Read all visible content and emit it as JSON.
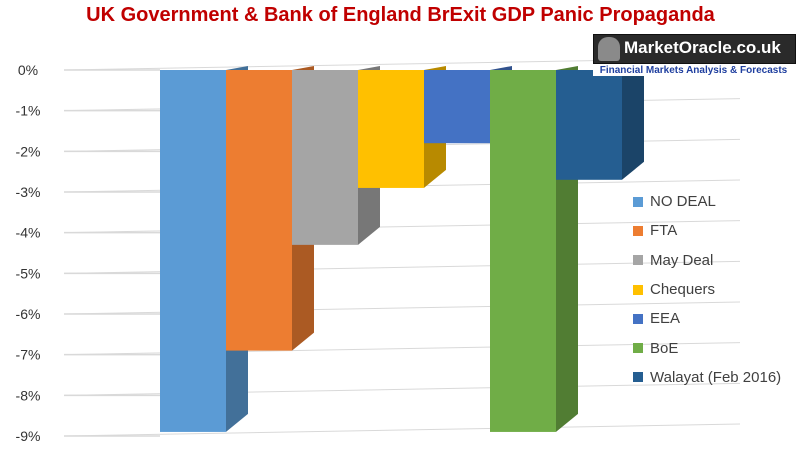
{
  "chart_data": {
    "type": "bar",
    "style": "3d-columns",
    "title": "UK Government & Bank of England BrExit GDP Panic Propaganda",
    "ylim": [
      -9,
      0
    ],
    "y_ticks": [
      "0%",
      "-1%",
      "-2%",
      "-3%",
      "-4%",
      "-5%",
      "-6%",
      "-7%",
      "-8%",
      "-9%"
    ],
    "grid": true,
    "legend": "right",
    "series": [
      {
        "name": "NO DEAL",
        "value": -8.9,
        "color": "#5b9bd5"
      },
      {
        "name": "FTA",
        "value": -6.9,
        "color": "#ed7d31"
      },
      {
        "name": "May Deal",
        "value": -4.3,
        "color": "#a5a5a5"
      },
      {
        "name": "Chequers",
        "value": -2.9,
        "color": "#ffc000"
      },
      {
        "name": "EEA",
        "value": -1.8,
        "color": "#4472c4"
      },
      {
        "name": "BoE",
        "value": -8.9,
        "color": "#70ad47"
      },
      {
        "name": "Walayat (Feb 2016)",
        "value": -2.7,
        "color": "#255e91"
      }
    ]
  },
  "logo": {
    "text": "MarketOracle.co.uk",
    "tagline": "Financial Markets Analysis & Forecasts"
  }
}
